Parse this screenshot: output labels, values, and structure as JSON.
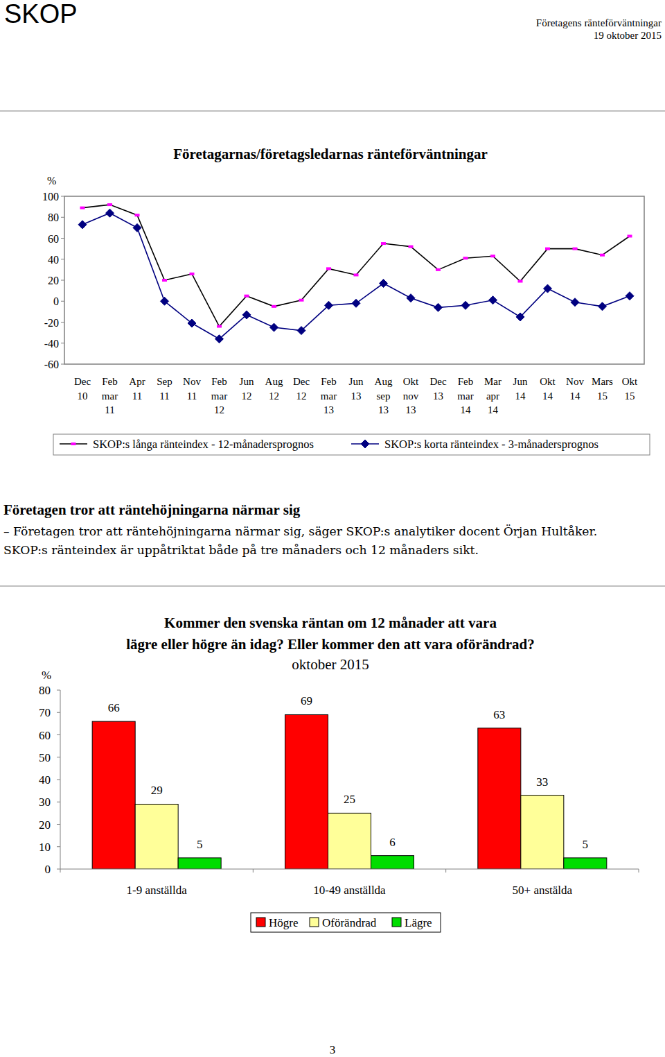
{
  "header": {
    "title": "SKOP",
    "subtitle": "Företagens ränteförväntningar",
    "date": "19 oktober 2015"
  },
  "chart_data": [
    {
      "type": "line",
      "title": "Företagarnas/företagsledarnas ränteförväntningar",
      "y_label": "%",
      "categories": [
        "Dec 10",
        "Feb mar 11",
        "Apr 11",
        "Sep 11",
        "Nov 11",
        "Feb mar 12",
        "Jun 12",
        "Aug 12",
        "Dec 12",
        "Feb mar 13",
        "Jun 13",
        "Aug sep 13",
        "Okt nov 13",
        "Dec 13",
        "Feb mar 14",
        "Mar apr 14",
        "Jun 14",
        "Okt 14",
        "Nov 14",
        "Mars 15",
        "Okt 15"
      ],
      "series": [
        {
          "name": "SKOP:s långa ränteindex - 12-månadersprognos",
          "color": "#ff00ff",
          "marker": "square",
          "values": [
            89,
            92,
            82,
            20,
            26,
            -24,
            5,
            -5,
            1,
            31,
            25,
            55,
            52,
            30,
            41,
            43,
            19,
            50,
            50,
            44,
            62
          ]
        },
        {
          "name": "SKOP:s korta ränteindex - 3-månadersprognos",
          "color": "#000080",
          "marker": "diamond",
          "values": [
            73,
            84,
            70,
            0,
            -21,
            -36,
            -13,
            -25,
            -28,
            -4,
            -2,
            17,
            3,
            -6,
            -4,
            1,
            -15,
            12,
            -1,
            -5,
            5
          ]
        }
      ],
      "ylim": [
        -60,
        100
      ],
      "yticks": [
        -60,
        -40,
        -20,
        0,
        20,
        40,
        60,
        80,
        100
      ],
      "grid": false,
      "legend": "bottom"
    },
    {
      "type": "bar",
      "title": [
        "Kommer den svenska räntan om 12 månader att vara",
        "lägre eller högre än idag? Eller kommer den att vara oförändrad?"
      ],
      "subtitle": "oktober 2015",
      "y_label": "%",
      "categories": [
        "1-9 anställda",
        "10-49 anställda",
        "50+ anstälda"
      ],
      "series": [
        {
          "name": "Högre",
          "color": "#ff0000",
          "values": [
            66,
            69,
            63
          ]
        },
        {
          "name": "Oförändrad",
          "color": "#ffff99",
          "values": [
            29,
            25,
            33
          ]
        },
        {
          "name": "Lägre",
          "color": "#00dd00",
          "values": [
            5,
            6,
            5
          ]
        }
      ],
      "ylim": [
        0,
        80
      ],
      "yticks": [
        0,
        10,
        20,
        30,
        40,
        50,
        60,
        70,
        80
      ],
      "grid": false,
      "data_labels": true,
      "legend": "bottom"
    }
  ],
  "article": {
    "headline": "Företagen tror att räntehöjningarna närmar sig",
    "paragraphs": [
      "– Företagen tror att räntehöjningarna närmar sig, säger SKOP:s analytiker docent Örjan Hultåker.",
      "SKOP:s ränteindex är uppåtriktat både på tre månaders och 12 månaders sikt."
    ]
  },
  "footer": {
    "page": 3
  }
}
